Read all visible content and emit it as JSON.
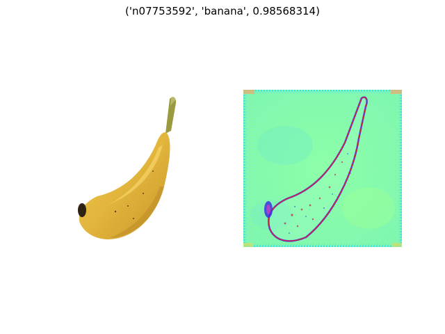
{
  "figure": {
    "title": "('n07753592', 'banana', 0.98568314)"
  },
  "panels": [
    {
      "name": "input-image",
      "content": "banana photo"
    },
    {
      "name": "saliency-map",
      "content": "banana outline heatmap",
      "colormap": "jet-like"
    }
  ],
  "colors": {
    "banana_main": "#e2b53c",
    "banana_shadow": "#c8962a",
    "banana_tip": "#3a2a14",
    "stem": "#8a8a3c",
    "heatmap_bg": "#8effa3",
    "heatmap_edge_red": "#d0203a",
    "heatmap_edge_blue": "#2a2cf0",
    "heatmap_border_cyan": "#3adfe8"
  }
}
